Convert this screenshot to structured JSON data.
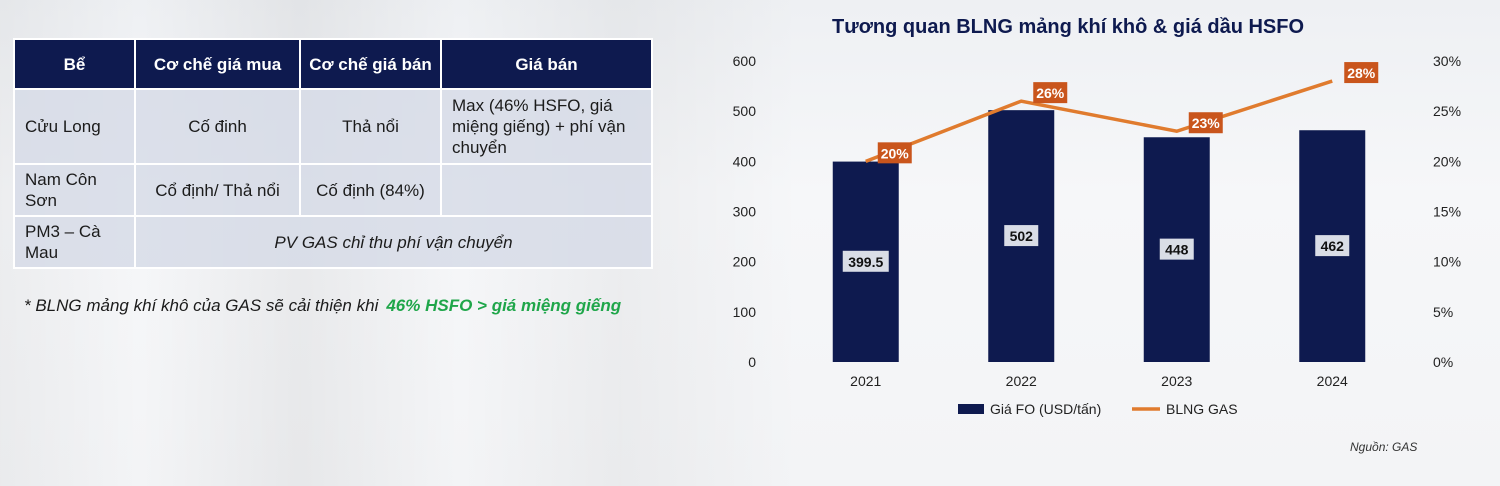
{
  "table": {
    "headers": [
      "Bể",
      "Cơ chế giá mua",
      "Cơ chế giá bán",
      "Giá bán"
    ],
    "rows": [
      [
        "Cửu Long",
        "Cố đinh",
        "Thả nổi",
        "Max (46% HSFO, giá miệng giếng) + phí vận chuyển"
      ],
      [
        "Nam Côn Sơn",
        "Cổ định/ Thả nổi",
        "Cố định (84%)",
        ""
      ],
      [
        "PM3 – Cà Mau",
        "PV GAS chỉ thu phí vận chuyển"
      ]
    ]
  },
  "note": {
    "text": "* BLNG mảng khí khô của GAS sẽ cải thiện khi",
    "highlight": "46% HSFO > giá miệng giếng"
  },
  "chart_data": {
    "type": "bar+line",
    "title": "Tương quan BLNG mảng khí khô & giá dầu HSFO",
    "categories": [
      "2021",
      "2022",
      "2023",
      "2024"
    ],
    "series": [
      {
        "name": "Giá FO (USD/tấn)",
        "type": "bar",
        "axis": "left",
        "color": "#0e1a4f",
        "values": [
          399.5,
          502,
          448,
          462
        ],
        "labels": [
          "399.5",
          "502",
          "448",
          "462"
        ]
      },
      {
        "name": "BLNG GAS",
        "type": "line",
        "axis": "right",
        "color": "#e07b2e",
        "values": [
          0.2,
          0.26,
          0.23,
          0.28
        ],
        "labels": [
          "20%",
          "26%",
          "23%",
          "28%"
        ]
      }
    ],
    "left_axis": {
      "min": 0,
      "max": 600,
      "ticks": [
        "0",
        "100",
        "200",
        "300",
        "400",
        "500",
        "600"
      ]
    },
    "right_axis": {
      "min": 0,
      "max": 0.3,
      "ticks": [
        "0%",
        "5%",
        "10%",
        "15%",
        "20%",
        "25%",
        "30%"
      ]
    },
    "legend_position": "bottom",
    "grid": false
  },
  "source": "Nguồn: GAS"
}
